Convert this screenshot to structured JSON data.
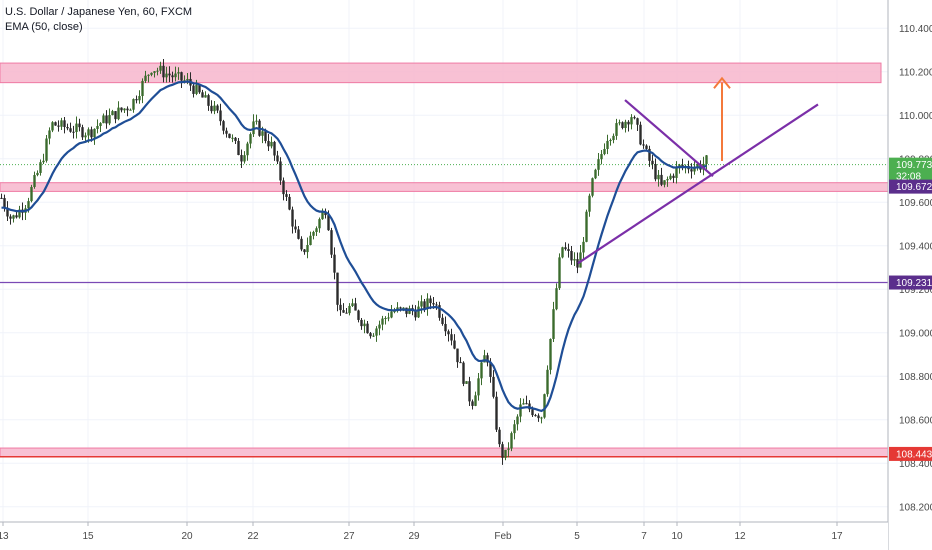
{
  "legend": {
    "symbol": "U.S. Dollar / Japanese Yen, 60, FXCM",
    "indicator": "EMA (50, close)"
  },
  "colors": {
    "up": "#3b6b2d",
    "down": "#2b2b2b",
    "ema": "#1f4e96",
    "zone_fill": "#f7b6cc",
    "zone_edge": "#ef7aa3",
    "support_line": "#7a49b5",
    "triangle": "#7b2fa8",
    "arrow": "#f4793b",
    "last_price_line": "#4caf50",
    "tag_green": "#4caf50",
    "tag_purple": "#5b2e8c",
    "tag_red": "#e53935"
  },
  "chart_data": {
    "type": "candlestick",
    "ylim": [
      108.13,
      110.53
    ],
    "y_ticks": [
      "110.400",
      "110.200",
      "110.000",
      "109.800",
      "109.600",
      "109.400",
      "109.200",
      "109.000",
      "108.800",
      "108.600",
      "108.400",
      "108.200"
    ],
    "y_tick_values": [
      110.4,
      110.2,
      110.0,
      109.8,
      109.6,
      109.4,
      109.2,
      109.0,
      108.8,
      108.6,
      108.4,
      108.2
    ],
    "x_ticks": [
      "13",
      "15",
      "20",
      "22",
      "27",
      "29",
      "Feb",
      "5",
      "7",
      "10",
      "12",
      "17"
    ],
    "x_tick_index": [
      3,
      88,
      187,
      253,
      349,
      414,
      503,
      577,
      644,
      677,
      740,
      837
    ],
    "price_key_values": {
      "start": 109.62,
      "x13": 109.6,
      "p1": 109.78,
      "x15": 109.92,
      "p2": 110.05,
      "x20": 110.17,
      "p3": 110.01,
      "x22": 109.96,
      "p4": 109.48,
      "x27": 109.12,
      "p5": 109.0,
      "x29": 109.1,
      "p6": 109.2,
      "p7": 108.72,
      "feb": 108.47,
      "p8": 108.67,
      "x5": 109.3,
      "p9": 109.72,
      "x7": 110.0,
      "p10": 109.72,
      "x10": 109.76,
      "end": 109.79
    },
    "zones": [
      {
        "name": "resistance-zone",
        "from": 110.15,
        "to": 110.24
      },
      {
        "name": "middle-zone",
        "from": 109.65,
        "to": 109.69
      },
      {
        "name": "support-zone",
        "from": 108.43,
        "to": 108.47
      }
    ],
    "horizontal_lines": [
      {
        "name": "support-line",
        "value": 109.231
      }
    ],
    "last_price": 109.773,
    "price_tags": [
      {
        "name": "last-price",
        "value": 109.773,
        "label": "109.773",
        "color": "#4caf50"
      },
      {
        "name": "countdown",
        "value": 109.72,
        "label": "32:08",
        "color": "#4caf50"
      },
      {
        "name": "zone-level",
        "value": 109.672,
        "label": "109.672",
        "color": "#5b2e8c"
      },
      {
        "name": "support-level",
        "value": 109.231,
        "label": "109.231",
        "color": "#5b2e8c"
      },
      {
        "name": "low-zone-level",
        "value": 108.443,
        "label": "108.443",
        "color": "#e53935"
      }
    ],
    "triangle": {
      "upper": [
        {
          "i": 625,
          "v": 110.07
        },
        {
          "i": 713,
          "v": 109.72
        }
      ],
      "lower": [
        {
          "i": 578,
          "v": 109.32
        },
        {
          "i": 818,
          "v": 110.05
        }
      ]
    },
    "arrow": {
      "from": {
        "i": 722,
        "v": 109.79
      },
      "to": {
        "i": 722,
        "v": 110.17
      }
    }
  }
}
